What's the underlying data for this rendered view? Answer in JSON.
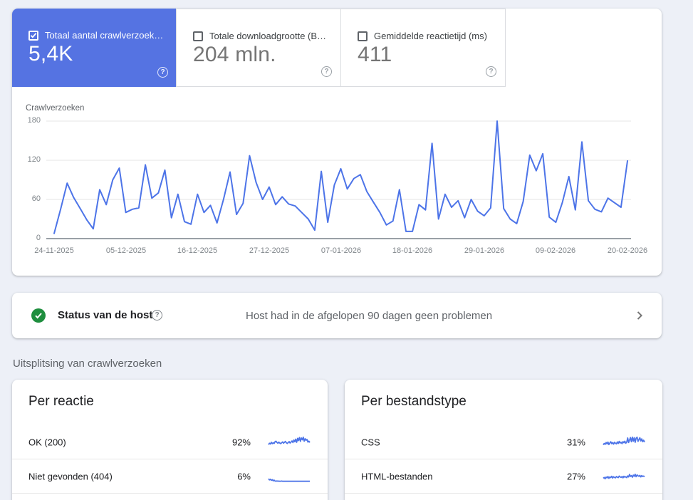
{
  "metric_cards": [
    {
      "label": "Totaal aantal crawlverzoek…",
      "value": "5,4K",
      "selected": true,
      "checked": true,
      "help_glyph": "?"
    },
    {
      "label": "Totale downloadgrootte (B…",
      "value": "204 mln.",
      "selected": false,
      "checked": false,
      "help_glyph": "?"
    },
    {
      "label": "Gemiddelde reactietijd (ms)",
      "value": "411",
      "selected": false,
      "checked": false,
      "help_glyph": "?"
    }
  ],
  "chart_data": {
    "type": "line",
    "title": "Crawlverzoeken",
    "ylabel": "Crawlverzoeken",
    "ylim": [
      0,
      180
    ],
    "yticks": [
      0,
      60,
      120,
      180
    ],
    "grid": true,
    "legend_position": "none",
    "x_tick_labels": [
      "24-11-2025",
      "05-12-2025",
      "16-12-2025",
      "27-12-2025",
      "07-01-2026",
      "18-01-2026",
      "29-01-2026",
      "09-02-2026",
      "20-02-2026"
    ],
    "x_tick_indices": [
      0,
      11,
      22,
      33,
      44,
      55,
      66,
      77,
      88
    ],
    "values": [
      8,
      45,
      85,
      63,
      46,
      29,
      15,
      75,
      52,
      90,
      108,
      40,
      45,
      47,
      113,
      62,
      70,
      105,
      32,
      68,
      26,
      22,
      68,
      40,
      51,
      24,
      60,
      102,
      37,
      54,
      127,
      86,
      60,
      79,
      52,
      64,
      53,
      50,
      40,
      30,
      13,
      103,
      25,
      82,
      107,
      76,
      92,
      98,
      72,
      56,
      40,
      21,
      27,
      75,
      11,
      11,
      52,
      44,
      146,
      30,
      68,
      48,
      58,
      32,
      60,
      42,
      35,
      47,
      180,
      46,
      30,
      23,
      57,
      128,
      104,
      130,
      33,
      25,
      55,
      95,
      44,
      148,
      58,
      45,
      41,
      62,
      55,
      48,
      119
    ]
  },
  "host_status": {
    "title": "Status van de host",
    "help_glyph": "?",
    "message": "Host had in de afgelopen 90 dagen geen problemen",
    "state": "ok"
  },
  "breakdown": {
    "section_title": "Uitsplitsing van crawlverzoeken",
    "cards": [
      {
        "title": "Per reactie",
        "rows": [
          {
            "label": "OK (200)",
            "percent": "92%",
            "spark": [
              30,
              42,
              35,
              50,
              38,
              46,
              40,
              55,
              60,
              48,
              42,
              52,
              44,
              38,
              46,
              54,
              42,
              50,
              58,
              46,
              40,
              48,
              56,
              44,
              52,
              62,
              48,
              70,
              55,
              78,
              50,
              85,
              65,
              92,
              58,
              88,
              72,
              95,
              60,
              82,
              68,
              75,
              52,
              60,
              48
            ]
          },
          {
            "label": "Niet gevonden (404)",
            "percent": "6%",
            "spark": [
              30,
              20,
              26,
              16,
              22,
              12,
              18,
              10,
              9,
              11,
              8,
              10,
              8,
              9,
              10,
              8,
              9,
              8,
              8,
              9,
              8,
              8,
              9,
              8,
              8,
              8,
              9,
              8,
              8,
              8,
              8,
              9,
              8,
              8,
              8,
              9,
              8,
              8,
              9,
              8,
              8,
              8,
              8,
              8,
              8
            ]
          }
        ]
      },
      {
        "title": "Per bestandstype",
        "rows": [
          {
            "label": "CSS",
            "percent": "31%",
            "spark": [
              28,
              40,
              32,
              48,
              36,
              52,
              30,
              44,
              55,
              38,
              48,
              34,
              50,
              42,
              36,
              54,
              40,
              58,
              44,
              50,
              38,
              56,
              46,
              60,
              42,
              52,
              88,
              48,
              70,
              92,
              55,
              95,
              60,
              90,
              50,
              85,
              95,
              58,
              75,
              90,
              62,
              80,
              55,
              68,
              52
            ]
          },
          {
            "label": "HTML-bestanden",
            "percent": "27%",
            "spark": [
              35,
              42,
              30,
              45,
              38,
              50,
              34,
              46,
              40,
              52,
              36,
              48,
              42,
              38,
              50,
              44,
              40,
              54,
              46,
              42,
              50,
              38,
              52,
              44,
              48,
              40,
              55,
              46,
              68,
              50,
              58,
              44,
              62,
              52,
              70,
              48,
              64,
              56,
              52,
              60,
              46,
              58,
              50,
              54,
              48
            ]
          }
        ]
      }
    ]
  },
  "colors": {
    "accent_blue": "#5573e2",
    "line_blue": "#4d74e8",
    "status_green": "#1e8e3e",
    "grid_gray": "#e6e6e6",
    "axis_gray": "#9aa0a6",
    "page_bg": "#edf0f7"
  }
}
